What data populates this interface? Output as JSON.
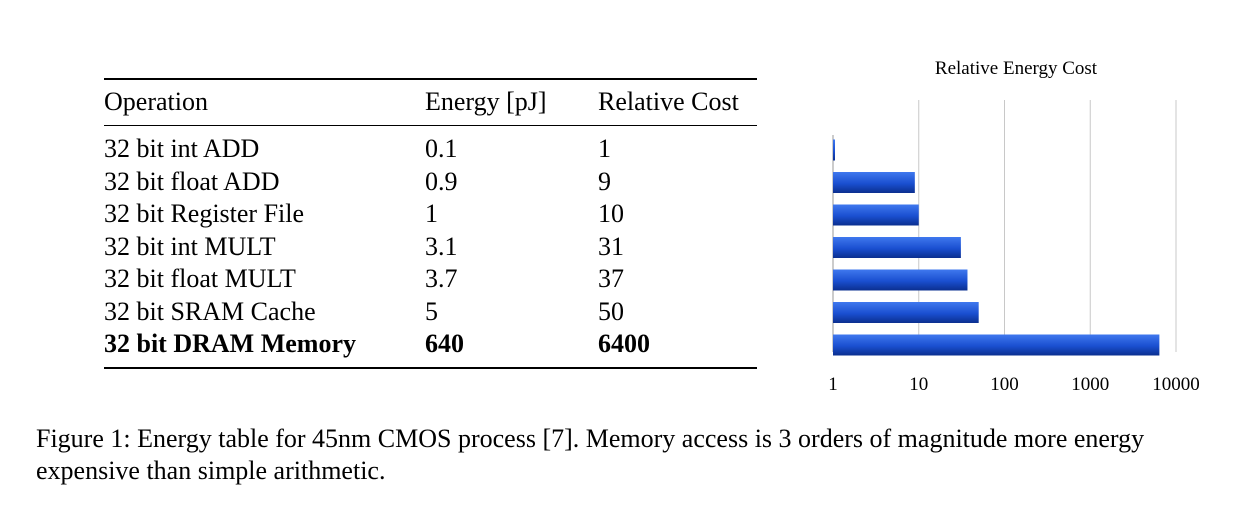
{
  "table": {
    "headers": [
      "Operation",
      "Energy [pJ]",
      "Relative Cost"
    ],
    "rows": [
      {
        "operation": "32 bit int ADD",
        "energy": "0.1",
        "relative": "1",
        "bold": false
      },
      {
        "operation": "32 bit float ADD",
        "energy": "0.9",
        "relative": "9",
        "bold": false
      },
      {
        "operation": "32 bit Register File",
        "energy": "1",
        "relative": "10",
        "bold": false
      },
      {
        "operation": "32 bit int MULT",
        "energy": "3.1",
        "relative": "31",
        "bold": false
      },
      {
        "operation": "32 bit float MULT",
        "energy": "3.7",
        "relative": "37",
        "bold": false
      },
      {
        "operation": "32 bit SRAM Cache",
        "energy": "5",
        "relative": "50",
        "bold": false
      },
      {
        "operation": "32 bit DRAM Memory",
        "energy": "640",
        "relative": "6400",
        "bold": true
      }
    ]
  },
  "chart_data": {
    "type": "bar",
    "orientation": "horizontal",
    "title": "Relative Energy Cost",
    "xlabel": "",
    "ylabel": "",
    "x_scale": "log",
    "xlim": [
      1,
      10000
    ],
    "x_ticks": [
      1,
      10,
      100,
      1000,
      10000
    ],
    "x_tick_labels": [
      "1",
      "10",
      "100",
      "1000",
      "10000"
    ],
    "categories": [
      "32 bit int ADD",
      "32 bit float ADD",
      "32 bit Register File",
      "32 bit int MULT",
      "32 bit float MULT",
      "32 bit SRAM Cache",
      "32 bit DRAM Memory"
    ],
    "values": [
      1,
      9,
      10,
      31,
      37,
      50,
      6400
    ],
    "bar_color": "#1a4fd0",
    "bar_color_dark": "#0b2f8f",
    "gridlines": true,
    "category_labels_shown": false
  },
  "caption": "Figure 1: Energy table for 45nm CMOS process [7]. Memory access is 3 orders of magnitude more energy expensive than simple arithmetic."
}
